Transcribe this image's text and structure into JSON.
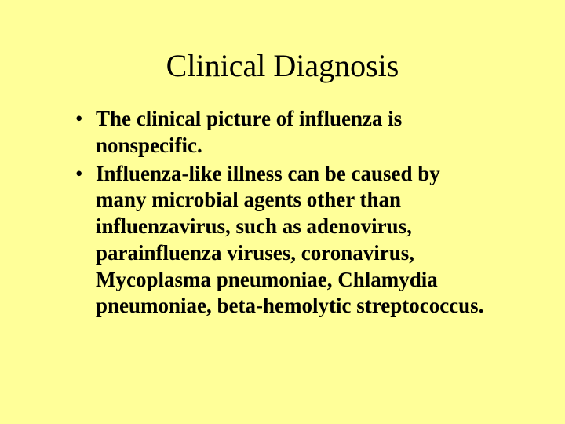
{
  "slide": {
    "background_color": "#ffff99",
    "text_color": "#000000",
    "title": {
      "text": "Clinical Diagnosis",
      "font_family": "Times New Roman",
      "font_size_pt": 40,
      "font_weight": "normal",
      "align": "center"
    },
    "bullets": [
      {
        "marker": "•",
        "text": "The clinical picture of influenza is nonspecific."
      },
      {
        "marker": "•",
        "text": "Influenza-like illness can be caused by many microbial agents other than influenzavirus, such as adenovirus, parainfluenza viruses, coronavirus, Mycoplasma pneumoniae, Chlamydia pneumoniae, beta-hemolytic streptococcus."
      }
    ],
    "bullet_style": {
      "font_family": "Times New Roman",
      "font_size_pt": 27,
      "font_weight": "bold",
      "line_height": 1.25
    }
  }
}
